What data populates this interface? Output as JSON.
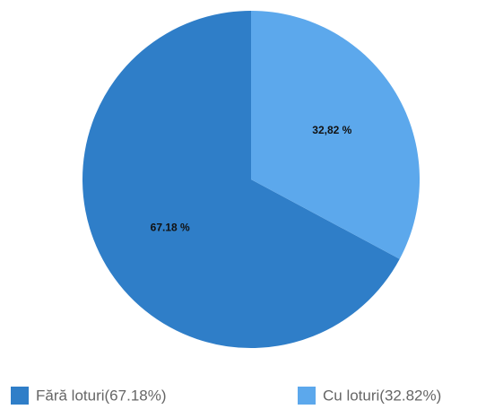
{
  "chart_data": {
    "type": "pie",
    "categories": [
      "Fără loturi(67.18%)",
      "Cu loturi(32.82%)"
    ],
    "values": [
      67.18,
      32.82
    ],
    "value_labels": [
      "67.18 %",
      "32,82 %"
    ],
    "colors": [
      "#2f7ec8",
      "#5ca8ec"
    ]
  }
}
